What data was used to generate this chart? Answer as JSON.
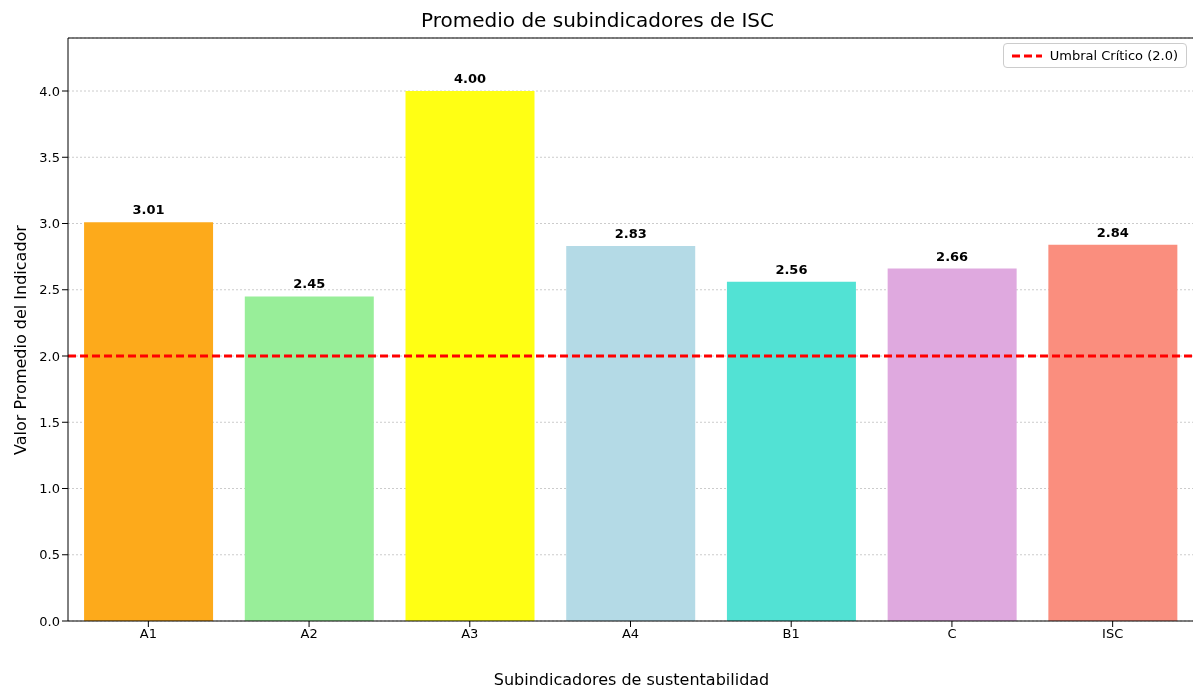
{
  "chart_data": {
    "type": "bar",
    "title": "Promedio de subindicadores de ISC",
    "xlabel": "Subindicadores de sustentabilidad",
    "ylabel": "Valor Promedio del Indicador",
    "categories": [
      "A1",
      "A2",
      "A3",
      "A4",
      "B1",
      "C",
      "ISC"
    ],
    "values": [
      3.01,
      2.45,
      4.0,
      2.83,
      2.56,
      2.66,
      2.84
    ],
    "value_labels": [
      "3.01",
      "2.45",
      "4.00",
      "2.83",
      "2.56",
      "2.66",
      "2.84"
    ],
    "colors": [
      "#fdaa1b",
      "#98ee99",
      "#ffff14",
      "#b4dae6",
      "#52e2d4",
      "#dfa9df",
      "#fa8e7e"
    ],
    "ylim": [
      0,
      4.4
    ],
    "yticks": [
      {
        "value": 0,
        "label": "0.0"
      },
      0.5,
      {
        "value": 1,
        "label": "1.0"
      },
      1.5,
      {
        "value": 2,
        "label": "2.0"
      },
      2.5,
      {
        "value": 3,
        "label": "3.0"
      },
      3.5,
      {
        "value": 4,
        "label": "4.0"
      }
    ],
    "grid": "y",
    "legend": "top right",
    "ref_lines": [
      {
        "axis": "y",
        "value": 2.0,
        "label": "Umbral Crítico (2.0)",
        "color": "#ff0000",
        "line_style": "dashed"
      }
    ]
  }
}
